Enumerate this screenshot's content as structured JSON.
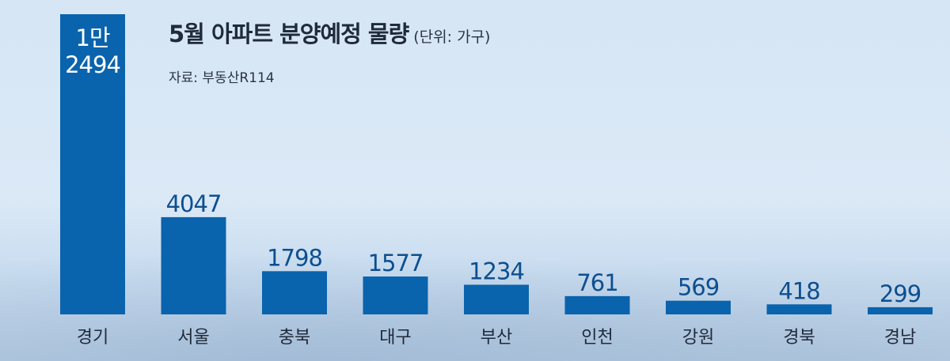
{
  "header": {
    "title": "5월 아파트 분양예정 물량",
    "unit": "(단위: 가구)",
    "source": "자료: 부동산R114"
  },
  "chart_data": {
    "type": "bar",
    "title": "5월 아파트 분양예정 물량",
    "unit": "(단위: 가구)",
    "categories": [
      "경기",
      "서울",
      "충북",
      "대구",
      "부산",
      "인천",
      "강원",
      "경북",
      "경남"
    ],
    "values": [
      12494,
      4047,
      1798,
      1577,
      1234,
      761,
      569,
      418,
      299
    ],
    "data_labels": [
      [
        "1만",
        "2494"
      ],
      "4047",
      "1798",
      "1577",
      "1234",
      "761",
      "569",
      "418",
      "299"
    ],
    "grid": false,
    "legend": "none",
    "colors": {
      "bar": "#0a63ad",
      "label": "#0d4f8f",
      "inner_label": "#ffffff"
    }
  }
}
